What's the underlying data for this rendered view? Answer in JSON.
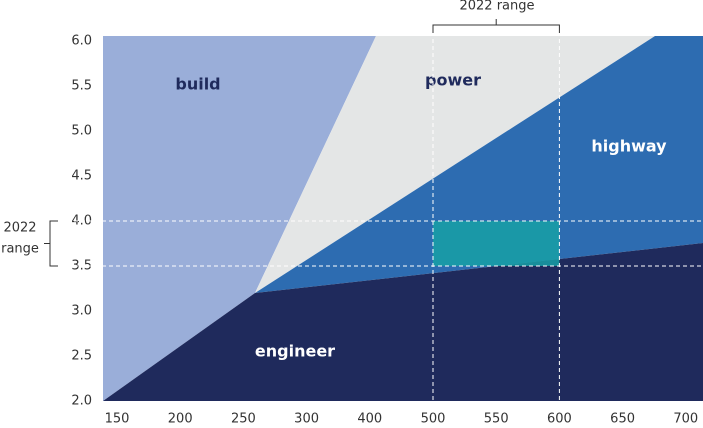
{
  "chart_data": {
    "type": "region",
    "x": [
      150,
      200,
      250,
      300,
      400,
      500,
      550,
      600,
      650,
      700
    ],
    "ylim": [
      2.0,
      6.0
    ],
    "yticks": [
      {
        "value": 2,
        "label": "2.0"
      },
      2.5,
      {
        "value": 3,
        "label": "3.0"
      },
      3.5,
      {
        "value": 4,
        "label": "4.0"
      },
      4.5,
      {
        "value": 5,
        "label": "5.0"
      },
      5.5,
      {
        "value": 6,
        "label": "6.0"
      }
    ],
    "regions": [
      {
        "name": "build",
        "color": "#9aaed9"
      },
      {
        "name": "power",
        "color": "#e4e6e6"
      },
      {
        "name": "highway",
        "color": "#2d6cb1"
      },
      {
        "name": "engineer",
        "color": "#1f2a5c"
      }
    ],
    "highlight": {
      "x_range": [
        500,
        600
      ],
      "y_range": [
        3.5,
        4.0
      ],
      "color": "#18a0a6",
      "x_annotation": "2022 range",
      "y_annotation": [
        "2022",
        "range"
      ]
    }
  }
}
